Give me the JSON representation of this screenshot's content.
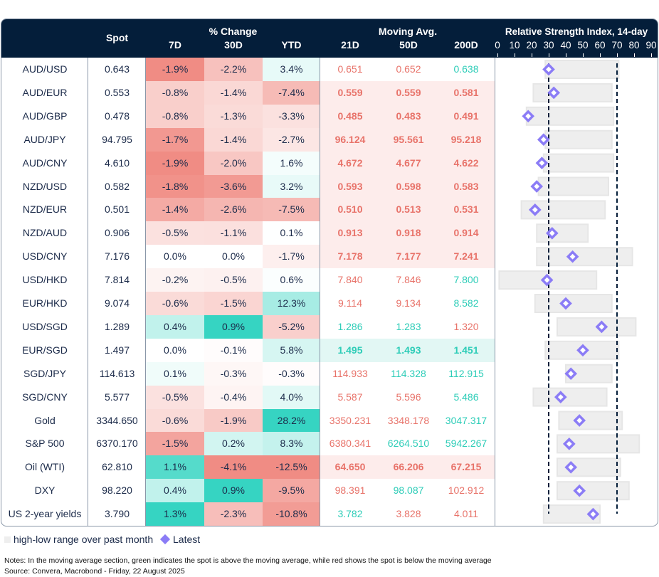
{
  "header": {
    "spot": "Spot",
    "pct_change": "% Change",
    "pct_cols": [
      "7D",
      "30D",
      "YTD"
    ],
    "moving_avg": "Moving Avg.",
    "ma_cols": [
      "21D",
      "50D",
      "200D"
    ],
    "rsi_title": "Relative Strength Index, 14-day",
    "rsi_ticks": [
      "0",
      "10",
      "20",
      "30",
      "40",
      "50",
      "60",
      "70",
      "80",
      "90"
    ]
  },
  "colors": {
    "header_bg": "#041e3a",
    "red": "#e8736a",
    "green": "#2ecdb8",
    "heat_red": "#f08c84",
    "heat_green": "#36d4c2",
    "ma_red_bg": "#fdeceb",
    "ma_green_bg": "#e2f7f4",
    "range_bar": "#eeeeee",
    "latest": "#8b7cf6",
    "dashed_line": "#041e3a"
  },
  "rows": [
    {
      "name": "AUD/USD",
      "spot": "0.643",
      "chg": [
        "-1.9%",
        "-2.2%",
        "3.4%"
      ],
      "ma": [
        "0.651",
        "0.652",
        "0.638"
      ],
      "rsi": {
        "low": 28,
        "high": 71,
        "latest": 30
      }
    },
    {
      "name": "AUD/EUR",
      "spot": "0.553",
      "chg": [
        "-0.8%",
        "-1.4%",
        "-7.4%"
      ],
      "ma": [
        "0.559",
        "0.559",
        "0.581"
      ],
      "rsi": {
        "low": 21,
        "high": 67,
        "latest": 33
      }
    },
    {
      "name": "AUD/GBP",
      "spot": "0.478",
      "chg": [
        "-0.8%",
        "-1.3%",
        "-3.3%"
      ],
      "ma": [
        "0.485",
        "0.483",
        "0.491"
      ],
      "rsi": {
        "low": 17,
        "high": 68,
        "latest": 18
      }
    },
    {
      "name": "AUD/JPY",
      "spot": "94.795",
      "chg": [
        "-1.7%",
        "-1.4%",
        "-2.7%"
      ],
      "ma": [
        "96.124",
        "95.561",
        "95.218"
      ],
      "rsi": {
        "low": 28,
        "high": 67,
        "latest": 27
      }
    },
    {
      "name": "AUD/CNY",
      "spot": "4.610",
      "chg": [
        "-1.9%",
        "-2.0%",
        "1.6%"
      ],
      "ma": [
        "4.672",
        "4.677",
        "4.622"
      ],
      "rsi": {
        "low": 27,
        "high": 68,
        "latest": 26
      }
    },
    {
      "name": "NZD/USD",
      "spot": "0.582",
      "chg": [
        "-1.8%",
        "-3.6%",
        "3.2%"
      ],
      "ma": [
        "0.593",
        "0.598",
        "0.583"
      ],
      "rsi": {
        "low": 24,
        "high": 65,
        "latest": 23
      }
    },
    {
      "name": "NZD/EUR",
      "spot": "0.501",
      "chg": [
        "-1.4%",
        "-2.6%",
        "-7.5%"
      ],
      "ma": [
        "0.510",
        "0.513",
        "0.531"
      ],
      "rsi": {
        "low": 14,
        "high": 63,
        "latest": 22
      }
    },
    {
      "name": "NZD/AUD",
      "spot": "0.906",
      "chg": [
        "-0.5%",
        "-1.1%",
        "0.1%"
      ],
      "ma": [
        "0.913",
        "0.918",
        "0.914"
      ],
      "rsi": {
        "low": 23,
        "high": 53,
        "latest": 32
      }
    },
    {
      "name": "USD/CNY",
      "spot": "7.176",
      "chg": [
        "0.0%",
        "0.0%",
        "-1.7%"
      ],
      "ma": [
        "7.178",
        "7.177",
        "7.241"
      ],
      "rsi": {
        "low": 23,
        "high": 79,
        "latest": 44
      }
    },
    {
      "name": "USD/HKD",
      "spot": "7.814",
      "chg": [
        "-0.2%",
        "-0.5%",
        "0.6%"
      ],
      "ma": [
        "7.840",
        "7.846",
        "7.800"
      ],
      "rsi": {
        "low": 1,
        "high": 58,
        "latest": 29
      }
    },
    {
      "name": "EUR/HKD",
      "spot": "9.074",
      "chg": [
        "-0.6%",
        "-1.5%",
        "12.3%"
      ],
      "ma": [
        "9.114",
        "9.134",
        "8.582"
      ],
      "rsi": {
        "low": 22,
        "high": 67,
        "latest": 40
      }
    },
    {
      "name": "USD/SGD",
      "spot": "1.289",
      "chg": [
        "0.4%",
        "0.9%",
        "-5.2%"
      ],
      "ma": [
        "1.286",
        "1.283",
        "1.320"
      ],
      "rsi": {
        "low": 35,
        "high": 81,
        "latest": 61
      }
    },
    {
      "name": "EUR/SGD",
      "spot": "1.497",
      "chg": [
        "0.0%",
        "-0.1%",
        "5.8%"
      ],
      "ma": [
        "1.495",
        "1.493",
        "1.451"
      ],
      "rsi": {
        "low": 28,
        "high": 71,
        "latest": 50
      }
    },
    {
      "name": "SGD/JPY",
      "spot": "114.613",
      "chg": [
        "0.1%",
        "-0.3%",
        "-0.3%"
      ],
      "ma": [
        "114.933",
        "114.328",
        "112.915"
      ],
      "rsi": {
        "low": 40,
        "high": 67,
        "latest": 43
      }
    },
    {
      "name": "SGD/CNY",
      "spot": "5.577",
      "chg": [
        "-0.5%",
        "-0.4%",
        "4.0%"
      ],
      "ma": [
        "5.587",
        "5.596",
        "5.486"
      ],
      "rsi": {
        "low": 21,
        "high": 64,
        "latest": 37
      }
    },
    {
      "name": "Gold",
      "spot": "3344.650",
      "chg": [
        "-0.6%",
        "-1.9%",
        "28.2%"
      ],
      "ma": [
        "3350.231",
        "3348.178",
        "3047.317"
      ],
      "rsi": {
        "low": 36,
        "high": 73,
        "latest": 48
      }
    },
    {
      "name": "S&P 500",
      "spot": "6370.170",
      "chg": [
        "-1.5%",
        "0.2%",
        "8.3%"
      ],
      "ma": [
        "6380.341",
        "6264.510",
        "5942.267"
      ],
      "rsi": {
        "low": 35,
        "high": 83,
        "latest": 42
      }
    },
    {
      "name": "Oil (WTI)",
      "spot": "62.810",
      "chg": [
        "1.1%",
        "-4.1%",
        "-12.5%"
      ],
      "ma": [
        "64.650",
        "66.206",
        "67.215"
      ],
      "rsi": {
        "low": 35,
        "high": 72,
        "latest": 43
      }
    },
    {
      "name": "DXY",
      "spot": "98.220",
      "chg": [
        "0.4%",
        "0.9%",
        "-9.5%"
      ],
      "ma": [
        "98.391",
        "98.087",
        "102.912"
      ],
      "rsi": {
        "low": 35,
        "high": 77,
        "latest": 48
      }
    },
    {
      "name": "US 2-year yields",
      "spot": "3.790",
      "chg": [
        "1.3%",
        "-2.3%",
        "-10.8%"
      ],
      "ma": [
        "3.782",
        "3.828",
        "4.011"
      ],
      "rsi": {
        "low": 27,
        "high": 60,
        "latest": 56
      }
    }
  ],
  "chart_data": {
    "type": "range-dot",
    "title": "Relative Strength Index, 14-day",
    "xlim": [
      0,
      90
    ],
    "reference_lines": [
      30,
      70
    ],
    "legend": {
      "range": "high-low range over past month",
      "latest": "Latest",
      "placement": "bottom-left"
    }
  },
  "footer": {
    "notes": "Notes: In the moving average section, green indicates the spot is above the moving average, while red shows the spot is below the moving average",
    "source": "Source: Convera, Macrobond - Friday, 22 August 2025"
  }
}
